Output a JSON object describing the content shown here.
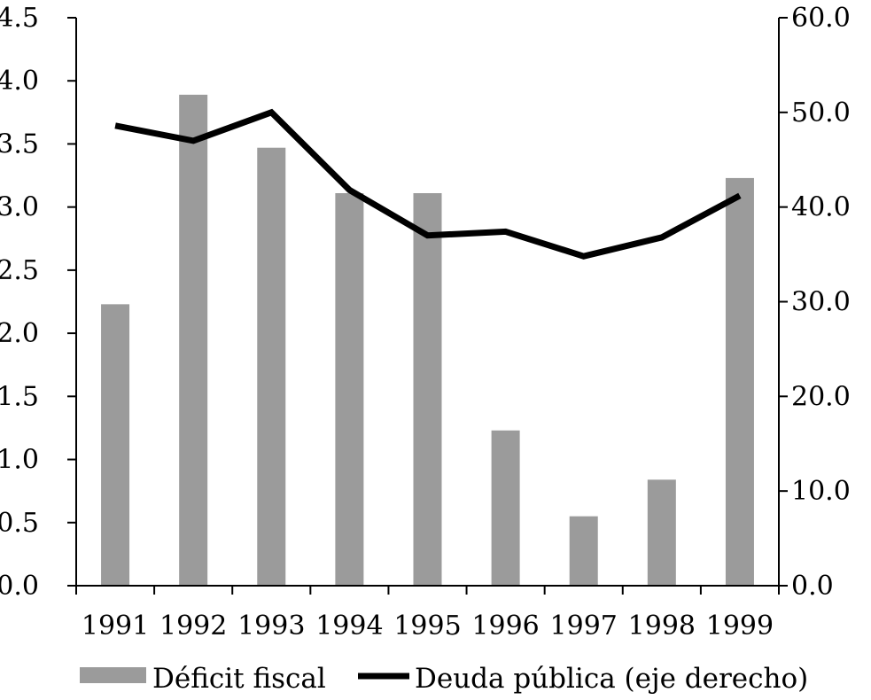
{
  "chart_data": {
    "type": "bar",
    "categories": [
      "1991",
      "1992",
      "1993",
      "1994",
      "1995",
      "1996",
      "1997",
      "1998",
      "1999"
    ],
    "series": [
      {
        "name": "Déficit fiscal",
        "type": "bar",
        "axis": "left",
        "color": "#9b9b9b",
        "values": [
          2.23,
          3.89,
          3.47,
          3.11,
          3.11,
          1.23,
          0.55,
          0.84,
          3.23
        ]
      },
      {
        "name": "Deuda pública (eje derecho)",
        "type": "line",
        "axis": "right",
        "color": "#000000",
        "values": [
          48.6,
          47.0,
          50.0,
          41.8,
          37.0,
          37.4,
          34.8,
          36.8,
          41.2
        ]
      }
    ],
    "y_left": {
      "ylim": [
        0,
        4.5
      ],
      "ticks": [
        "0.0",
        "0.5",
        "1.0",
        "1.5",
        "2.0",
        "2.5",
        "3.0",
        "3.5",
        "4.0",
        "4.5"
      ]
    },
    "y_right": {
      "ylim": [
        0,
        60
      ],
      "ticks": [
        "0.0",
        "10.0",
        "20.0",
        "30.0",
        "40.0",
        "50.0",
        "60.0"
      ]
    },
    "grid": false,
    "legend_position": "bottom",
    "title": "",
    "xlabel": "",
    "ylabel": ""
  }
}
